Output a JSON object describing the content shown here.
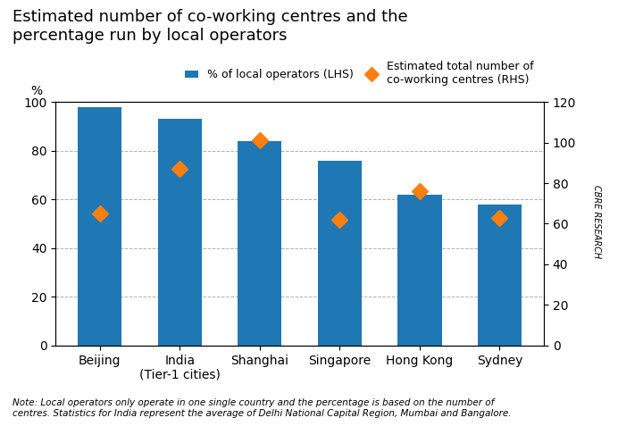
{
  "chart_data": {
    "type": "bar",
    "title": "Estimated number of co-working centres and the\npercentage run by local operators",
    "categories": [
      "Beijing",
      "India\n(Tier-1 cities)",
      "Shanghai",
      "Singapore",
      "Hong Kong",
      "Sydney"
    ],
    "series": [
      {
        "name": "% of local operators (LHS)",
        "type": "bar",
        "values": [
          98,
          93,
          84,
          76,
          62,
          58
        ]
      },
      {
        "name": "Estimated total number of\nco-working centres (RHS)",
        "type": "scatter",
        "marker": "diamond",
        "axis": "y2",
        "values": [
          65,
          87,
          101,
          62,
          76,
          63
        ]
      }
    ],
    "ylabel": "%",
    "ylim": [
      0,
      100
    ],
    "yticks": [
      0,
      20,
      40,
      60,
      80,
      100
    ],
    "y2lim": [
      0,
      120
    ],
    "y2ticks": [
      0,
      20,
      40,
      60,
      80,
      100,
      120
    ],
    "grid": true,
    "legend": "upper right",
    "annotations": [
      "Note: Local operators only operate in one single country and the percentage is based on the number of\ncentres. Statistics for India represent the average of Delhi National Capital Region, Mumbai and Bangalore.",
      "CBRE RESEARCH"
    ]
  }
}
